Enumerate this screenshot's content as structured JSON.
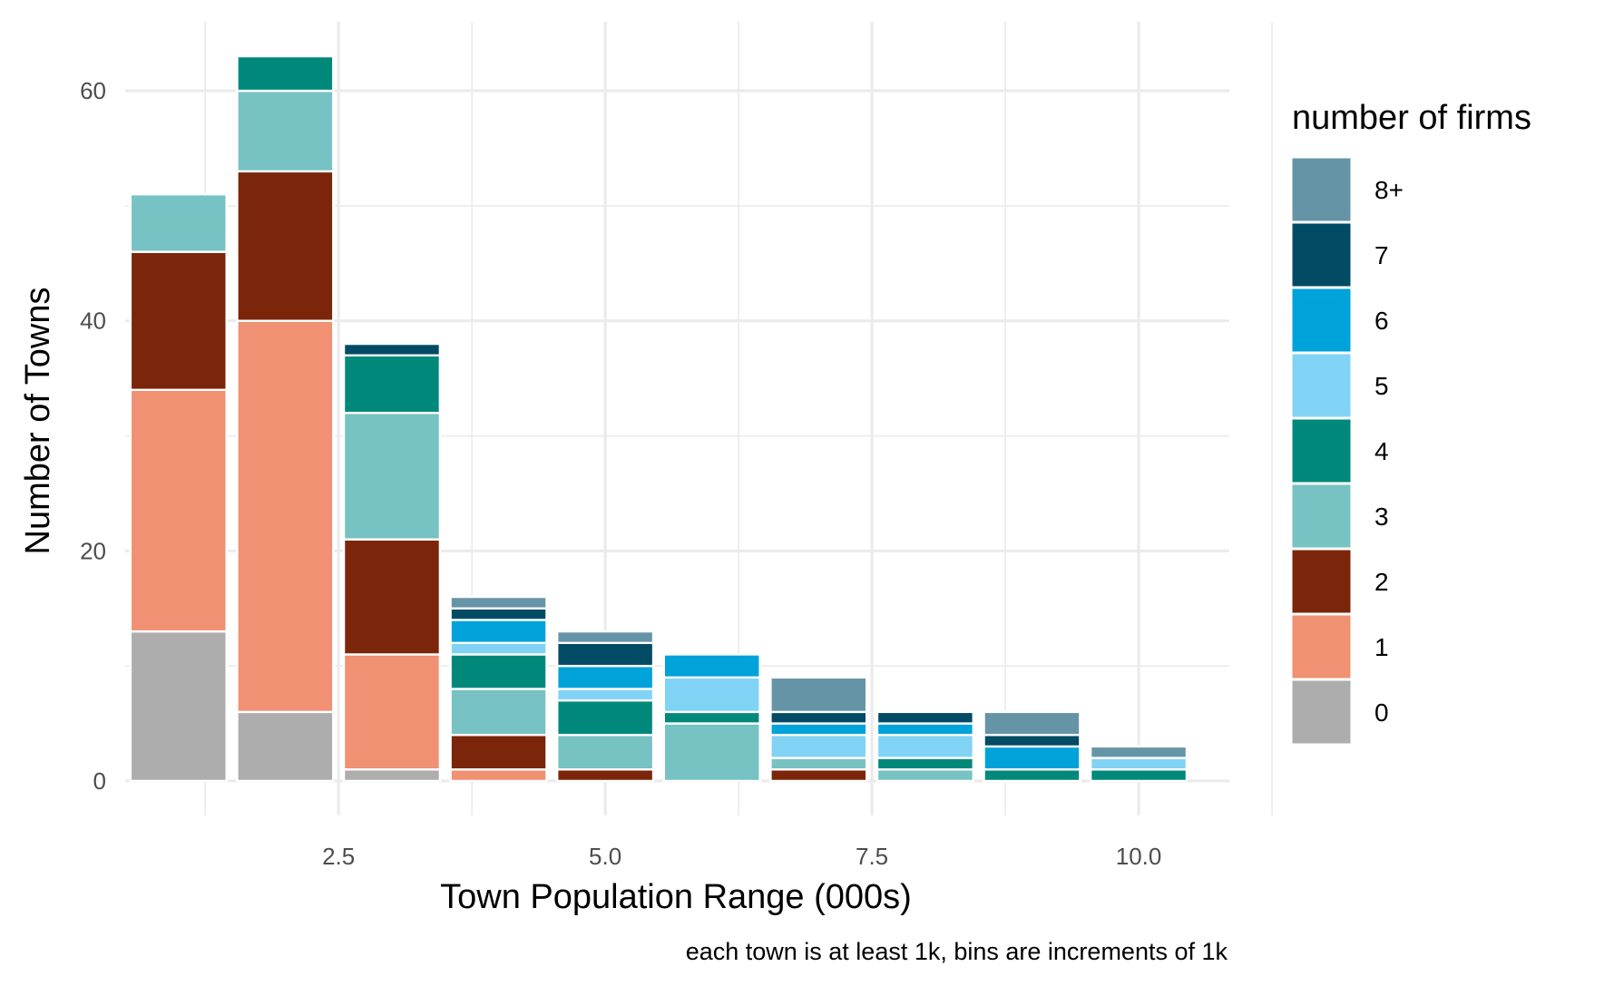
{
  "chart_data": {
    "type": "bar",
    "stacked": true,
    "xlabel": "Town Population Range (000s)",
    "ylabel": "Number of Towns",
    "caption": "each town is at least 1k, bins are increments of 1k",
    "xlim": [
      0.5,
      10.85
    ],
    "ylim": [
      -3,
      66
    ],
    "x_ticks": [
      {
        "value": 2.5,
        "label": "2.5"
      },
      {
        "value": 5.0,
        "label": "5.0"
      },
      {
        "value": 7.5,
        "label": "7.5"
      },
      {
        "value": 10.0,
        "label": "10.0"
      }
    ],
    "y_ticks": [
      {
        "value": 0,
        "label": "0"
      },
      {
        "value": 20,
        "label": "20"
      },
      {
        "value": 40,
        "label": "40"
      },
      {
        "value": 60,
        "label": "60"
      }
    ],
    "grid": true,
    "legend": {
      "title": "number of firms",
      "position": "right"
    },
    "bin_centers": [
      1,
      2,
      3,
      4,
      5,
      6,
      7,
      8,
      9,
      10
    ],
    "series": [
      {
        "name": "0",
        "color": "#ADADAD",
        "values": [
          13,
          6,
          1,
          0,
          0,
          0,
          0,
          0,
          0,
          0
        ]
      },
      {
        "name": "1",
        "color": "#EF9172",
        "values": [
          21,
          34,
          10,
          1,
          0,
          0,
          0,
          0,
          0,
          0
        ]
      },
      {
        "name": "2",
        "color": "#7B260B",
        "values": [
          12,
          13,
          10,
          3,
          1,
          0,
          1,
          0,
          0,
          0
        ]
      },
      {
        "name": "3",
        "color": "#77C2C2",
        "values": [
          5,
          7,
          11,
          4,
          3,
          5,
          1,
          1,
          0,
          0
        ]
      },
      {
        "name": "4",
        "color": "#00897B",
        "values": [
          0,
          3,
          5,
          3,
          3,
          1,
          0,
          1,
          1,
          1
        ]
      },
      {
        "name": "5",
        "color": "#81D3F5",
        "values": [
          0,
          0,
          0,
          1,
          1,
          3,
          2,
          2,
          0,
          1
        ]
      },
      {
        "name": "6",
        "color": "#00A2DA",
        "values": [
          0,
          0,
          0,
          2,
          2,
          2,
          1,
          1,
          2,
          0
        ]
      },
      {
        "name": "7",
        "color": "#024B65",
        "values": [
          0,
          0,
          1,
          1,
          2,
          0,
          1,
          1,
          1,
          0
        ]
      },
      {
        "name": "8+",
        "color": "#6694A7",
        "values": [
          0,
          0,
          0,
          1,
          1,
          0,
          3,
          0,
          2,
          1
        ]
      }
    ]
  }
}
